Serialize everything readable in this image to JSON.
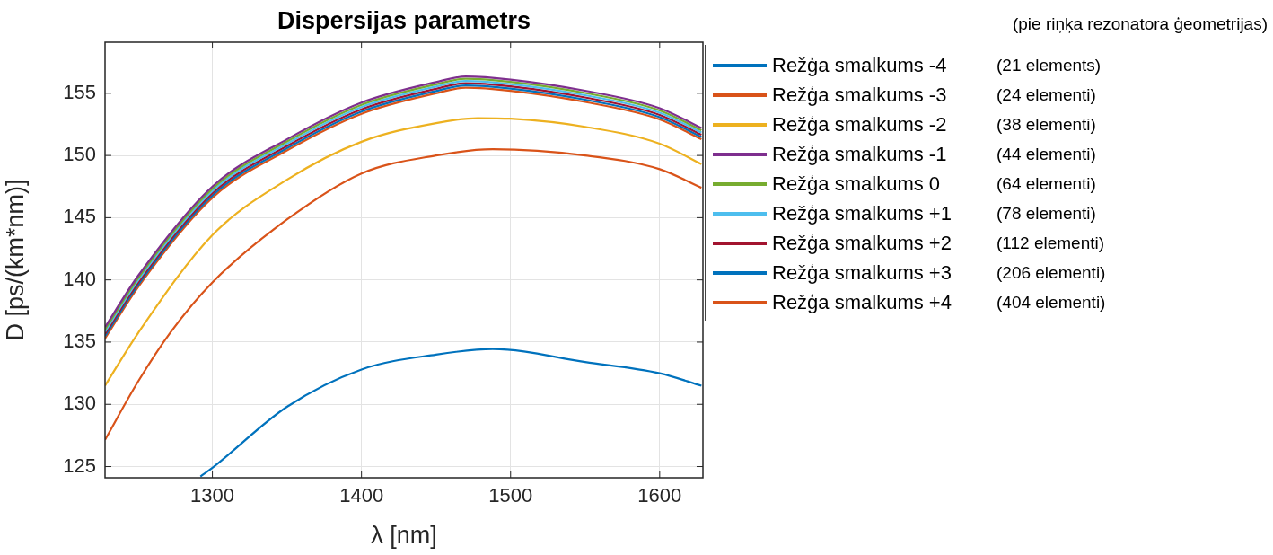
{
  "chart_data": {
    "type": "line",
    "title": "Dispersijas parametrs",
    "xlabel": "λ [nm]",
    "ylabel": "D [ps/(km*nm)]",
    "xlim": [
      1228,
      1629
    ],
    "xticks": [
      1300,
      1400,
      1500,
      1600
    ],
    "ylim": [
      124.1,
      159.1
    ],
    "yticks": [
      125,
      130,
      135,
      140,
      145,
      150,
      155
    ],
    "grid": true,
    "legend": "right",
    "annotations": [
      "(pie riņķa rezonatora ģeometrijas)",
      "(21 elements)",
      "(24 elementi)",
      "(38 elementi)",
      "(44 elementi)",
      "(64 elementi)",
      "(78 elementi)",
      "(112 elementi)",
      "(206 elementi)",
      "(404 elementi)"
    ],
    "series": [
      {
        "name": "Režģa smalkums -4",
        "color": "#0072bd",
        "x": [
          1292,
          1300,
          1350,
          1400,
          1450,
          1488,
          1550,
          1600,
          1628
        ],
        "values": [
          124.2,
          124.9,
          129.8,
          132.8,
          134.0,
          134.45,
          133.4,
          132.5,
          131.5
        ]
      },
      {
        "name": "Režģa smalkums -3",
        "color": "#d95319",
        "x": [
          1228,
          1250,
          1272,
          1300,
          1350,
          1400,
          1450,
          1488,
          1550,
          1600,
          1628
        ],
        "values": [
          127.15,
          131.8,
          135.8,
          139.8,
          144.85,
          148.55,
          150.0,
          150.5,
          150.0,
          148.9,
          147.4
        ]
      },
      {
        "name": "Režģa smalkums -2",
        "color": "#edb120",
        "x": [
          1228,
          1250,
          1300,
          1350,
          1400,
          1450,
          1478,
          1500,
          1550,
          1600,
          1628
        ],
        "values": [
          131.5,
          135.7,
          143.6,
          148.05,
          151.1,
          152.6,
          153.0,
          152.95,
          152.3,
          150.95,
          149.3
        ]
      },
      {
        "name": "Režģa smalkums -1",
        "color": "#7e2f8e",
        "x": [
          1228,
          1250,
          1300,
          1350,
          1400,
          1450,
          1470,
          1500,
          1550,
          1600,
          1628
        ],
        "values": [
          136.2,
          140.3,
          147.5,
          151.3,
          154.25,
          155.9,
          156.35,
          156.1,
          155.2,
          153.8,
          152.2
        ]
      },
      {
        "name": "Režģa smalkums 0",
        "color": "#77ac30",
        "x": [
          1228,
          1250,
          1300,
          1350,
          1400,
          1450,
          1470,
          1500,
          1550,
          1600,
          1628
        ],
        "values": [
          136.02,
          140.12,
          147.32,
          151.12,
          154.07,
          155.72,
          156.17,
          155.92,
          155.02,
          153.62,
          152.02
        ]
      },
      {
        "name": "Režģa smalkums +1",
        "color": "#4dbeee",
        "x": [
          1228,
          1250,
          1300,
          1350,
          1400,
          1450,
          1470,
          1500,
          1550,
          1600,
          1628
        ],
        "values": [
          135.84,
          139.94,
          147.14,
          150.94,
          153.89,
          155.54,
          155.99,
          155.74,
          154.84,
          153.44,
          151.84
        ]
      },
      {
        "name": "Režģa smalkums +2",
        "color": "#a2142f",
        "x": [
          1228,
          1250,
          1300,
          1350,
          1400,
          1450,
          1470,
          1500,
          1550,
          1600,
          1628
        ],
        "values": [
          135.66,
          139.76,
          146.96,
          150.76,
          153.71,
          155.36,
          155.81,
          155.56,
          154.66,
          153.26,
          151.66
        ]
      },
      {
        "name": "Režģa smalkums +3",
        "color": "#0072bd",
        "x": [
          1228,
          1250,
          1300,
          1350,
          1400,
          1450,
          1470,
          1500,
          1550,
          1600,
          1628
        ],
        "values": [
          135.48,
          139.58,
          146.78,
          150.58,
          153.53,
          155.18,
          155.63,
          155.38,
          154.48,
          153.08,
          151.48
        ]
      },
      {
        "name": "Režģa smalkums +4",
        "color": "#d95319",
        "x": [
          1228,
          1250,
          1300,
          1350,
          1400,
          1450,
          1470,
          1500,
          1550,
          1600,
          1628
        ],
        "values": [
          135.3,
          139.4,
          146.6,
          150.4,
          153.35,
          155.0,
          155.45,
          155.2,
          154.3,
          152.9,
          151.3
        ]
      }
    ]
  }
}
